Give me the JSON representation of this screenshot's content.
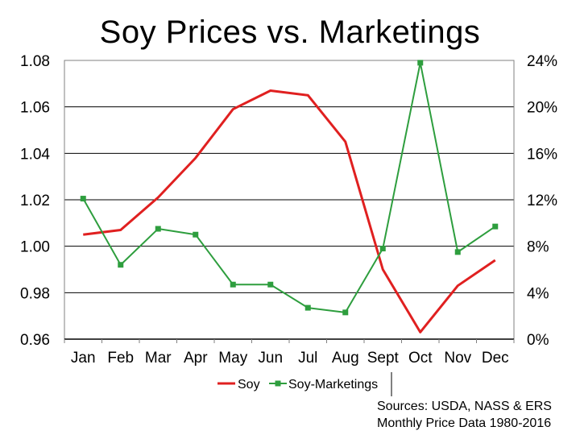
{
  "chart_data": {
    "type": "line",
    "title": "Soy Prices vs. Marketings",
    "categories": [
      "Jan",
      "Feb",
      "Mar",
      "Apr",
      "May",
      "Jun",
      "Jul",
      "Aug",
      "Sept",
      "Oct",
      "Nov",
      "Dec"
    ],
    "y_left": {
      "range": [
        0.96,
        1.08
      ],
      "ticks": [
        "1.08",
        "1.06",
        "1.04",
        "1.02",
        "1.00",
        "0.98",
        "0.96"
      ],
      "tick_values": [
        1.08,
        1.06,
        1.04,
        1.02,
        1.0,
        0.98,
        0.96
      ]
    },
    "y_right": {
      "range": [
        0,
        24
      ],
      "ticks": [
        "24%",
        "20%",
        "16%",
        "12%",
        "8%",
        "4%",
        "0%"
      ],
      "tick_values": [
        24,
        20,
        16,
        12,
        8,
        4,
        0
      ]
    },
    "series": [
      {
        "name": "Soy",
        "axis": "left",
        "color": "#e02020",
        "marker": "none",
        "values": [
          1.005,
          1.007,
          1.021,
          1.038,
          1.059,
          1.067,
          1.065,
          1.045,
          0.99,
          0.963,
          0.983,
          0.994
        ]
      },
      {
        "name": "Soy-Marketings",
        "axis": "right",
        "color": "#2e9e3e",
        "marker": "square",
        "values": [
          12.1,
          6.4,
          9.5,
          9.0,
          4.7,
          4.7,
          2.7,
          2.3,
          7.8,
          23.8,
          7.5,
          9.7
        ]
      }
    ],
    "legend": "bottom-center"
  },
  "footer": {
    "sources_line1": "Sources: USDA, NASS & ERS",
    "sources_line2": "Monthly Price Data 1980-2016"
  }
}
